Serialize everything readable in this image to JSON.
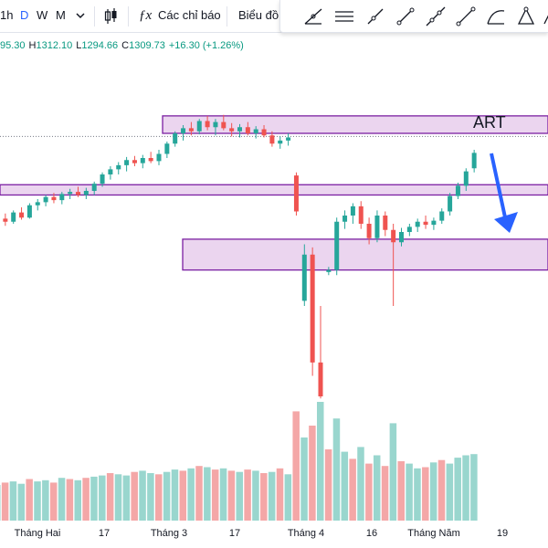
{
  "toolbar": {
    "intervals": [
      "1h",
      "D",
      "W",
      "M"
    ],
    "active_interval": "D",
    "indicators_label": "Các chỉ báo",
    "chart_type_label": "Biểu đồ"
  },
  "legend": {
    "open": "95.30",
    "high_label": "H",
    "high": "1312.10",
    "low_label": "L",
    "low": "1294.66",
    "close_label": "C",
    "close": "1309.73",
    "change": "+16.30 (+1.26%)"
  },
  "drawing_tools": [
    "trend-angle-tool",
    "horizontal-lines-tool",
    "ray-tool",
    "line-tool",
    "extended-line-tool",
    "info-line-tool",
    "curve-tool",
    "triangle-tool",
    "polygon-tool"
  ],
  "annotation": {
    "label": "ART"
  },
  "colors": {
    "up": "#26a69a",
    "down": "#ef5350",
    "zone_fill": "#e1bee7",
    "zone_border": "#7b1fa2",
    "arrow": "#2962ff",
    "vol_up": "#99d6ce",
    "vol_down": "#f4a7a7"
  },
  "xaxis": {
    "labels": [
      "Tháng Hai",
      "17",
      "Tháng 3",
      "17",
      "Tháng 4",
      "16",
      "Tháng Năm",
      "19"
    ]
  },
  "chart_data": {
    "type": "candlestick",
    "ohlc": [
      [
        1190,
        1198,
        1186,
        1195
      ],
      [
        1195,
        1200,
        1188,
        1192
      ],
      [
        1192,
        1203,
        1190,
        1201
      ],
      [
        1201,
        1206,
        1194,
        1196
      ],
      [
        1196,
        1210,
        1195,
        1208
      ],
      [
        1208,
        1214,
        1203,
        1211
      ],
      [
        1211,
        1218,
        1207,
        1216
      ],
      [
        1216,
        1220,
        1210,
        1213
      ],
      [
        1213,
        1221,
        1209,
        1219
      ],
      [
        1219,
        1224,
        1214,
        1221
      ],
      [
        1221,
        1226,
        1216,
        1218
      ],
      [
        1218,
        1225,
        1214,
        1222
      ],
      [
        1222,
        1231,
        1218,
        1229
      ],
      [
        1229,
        1240,
        1226,
        1238
      ],
      [
        1238,
        1246,
        1233,
        1243
      ],
      [
        1243,
        1250,
        1238,
        1247
      ],
      [
        1247,
        1255,
        1241,
        1252
      ],
      [
        1252,
        1256,
        1246,
        1249
      ],
      [
        1249,
        1257,
        1244,
        1254
      ],
      [
        1254,
        1260,
        1249,
        1251
      ],
      [
        1251,
        1262,
        1247,
        1258
      ],
      [
        1258,
        1270,
        1254,
        1268
      ],
      [
        1268,
        1280,
        1265,
        1278
      ],
      [
        1278,
        1286,
        1271,
        1283
      ],
      [
        1283,
        1289,
        1276,
        1280
      ],
      [
        1280,
        1292,
        1277,
        1290
      ],
      [
        1290,
        1295,
        1281,
        1284
      ],
      [
        1284,
        1292,
        1276,
        1289
      ],
      [
        1289,
        1296,
        1281,
        1283
      ],
      [
        1283,
        1288,
        1275,
        1280
      ],
      [
        1280,
        1287,
        1274,
        1284
      ],
      [
        1284,
        1289,
        1276,
        1278
      ],
      [
        1278,
        1285,
        1273,
        1282
      ],
      [
        1282,
        1286,
        1274,
        1276
      ],
      [
        1276,
        1280,
        1265,
        1268
      ],
      [
        1268,
        1275,
        1263,
        1271
      ],
      [
        1271,
        1278,
        1266,
        1274
      ],
      [
        1237,
        1240,
        1198,
        1202
      ],
      [
        1115,
        1170,
        1110,
        1160
      ],
      [
        1160,
        1167,
        1042,
        1055
      ],
      [
        1055,
        1110,
        1020,
        1022
      ],
      [
        1143,
        1148,
        1140,
        1145
      ],
      [
        1145,
        1196,
        1140,
        1192
      ],
      [
        1192,
        1203,
        1185,
        1198
      ],
      [
        1198,
        1210,
        1190,
        1207
      ],
      [
        1207,
        1212,
        1185,
        1190
      ],
      [
        1190,
        1196,
        1170,
        1176
      ],
      [
        1176,
        1203,
        1172,
        1198
      ],
      [
        1198,
        1202,
        1178,
        1184
      ],
      [
        1184,
        1190,
        1110,
        1172
      ],
      [
        1172,
        1186,
        1168,
        1182
      ],
      [
        1182,
        1190,
        1178,
        1187
      ],
      [
        1187,
        1195,
        1182,
        1192
      ],
      [
        1192,
        1198,
        1185,
        1189
      ],
      [
        1189,
        1196,
        1184,
        1193
      ],
      [
        1193,
        1205,
        1190,
        1202
      ],
      [
        1202,
        1220,
        1198,
        1217
      ],
      [
        1217,
        1230,
        1214,
        1227
      ],
      [
        1227,
        1244,
        1222,
        1241
      ],
      [
        1244,
        1262,
        1240,
        1259
      ]
    ],
    "volume": [
      [
        0.3,
        1
      ],
      [
        0.32,
        0
      ],
      [
        0.33,
        1
      ],
      [
        0.31,
        1
      ],
      [
        0.35,
        0
      ],
      [
        0.33,
        1
      ],
      [
        0.34,
        1
      ],
      [
        0.32,
        0
      ],
      [
        0.36,
        1
      ],
      [
        0.35,
        0
      ],
      [
        0.34,
        1
      ],
      [
        0.36,
        0
      ],
      [
        0.37,
        1
      ],
      [
        0.38,
        1
      ],
      [
        0.4,
        0
      ],
      [
        0.39,
        1
      ],
      [
        0.38,
        1
      ],
      [
        0.41,
        0
      ],
      [
        0.42,
        1
      ],
      [
        0.4,
        1
      ],
      [
        0.39,
        0
      ],
      [
        0.41,
        1
      ],
      [
        0.43,
        1
      ],
      [
        0.42,
        0
      ],
      [
        0.44,
        1
      ],
      [
        0.46,
        0
      ],
      [
        0.45,
        1
      ],
      [
        0.43,
        0
      ],
      [
        0.44,
        1
      ],
      [
        0.42,
        0
      ],
      [
        0.41,
        1
      ],
      [
        0.43,
        0
      ],
      [
        0.42,
        1
      ],
      [
        0.4,
        0
      ],
      [
        0.41,
        1
      ],
      [
        0.44,
        0
      ],
      [
        0.39,
        1
      ],
      [
        0.92,
        0
      ],
      [
        0.7,
        1
      ],
      [
        0.8,
        0
      ],
      [
        1.0,
        1
      ],
      [
        0.6,
        0
      ],
      [
        0.86,
        1
      ],
      [
        0.58,
        1
      ],
      [
        0.52,
        0
      ],
      [
        0.62,
        1
      ],
      [
        0.48,
        0
      ],
      [
        0.55,
        1
      ],
      [
        0.46,
        0
      ],
      [
        0.82,
        1
      ],
      [
        0.5,
        0
      ],
      [
        0.48,
        1
      ],
      [
        0.44,
        1
      ],
      [
        0.45,
        0
      ],
      [
        0.49,
        1
      ],
      [
        0.51,
        0
      ],
      [
        0.48,
        1
      ],
      [
        0.53,
        1
      ],
      [
        0.55,
        1
      ],
      [
        0.56,
        1
      ]
    ],
    "zones": [
      [
        1278,
        1295
      ],
      [
        1218,
        1228
      ],
      [
        1145,
        1175
      ]
    ],
    "reference_line": 1275
  }
}
